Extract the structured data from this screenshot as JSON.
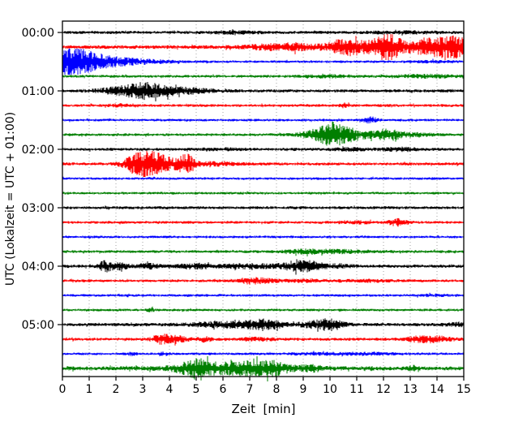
{
  "chart_data": {
    "type": "line",
    "subtype": "seismogram-dayplot",
    "title": "",
    "xlabel": "Zeit  [min]",
    "ylabel": "UTC (Lokalzeit = UTC + 01:00)",
    "xlim": [
      0,
      15
    ],
    "x_ticks": [
      0,
      1,
      2,
      3,
      4,
      5,
      6,
      7,
      8,
      9,
      10,
      11,
      12,
      13,
      14,
      15
    ],
    "x_tick_labels": [
      "0",
      "1",
      "2",
      "3",
      "4",
      "5",
      "6",
      "7",
      "8",
      "9",
      "10",
      "11",
      "12",
      "13",
      "14",
      "15"
    ],
    "y_tick_labels": [
      "00:00",
      "01:00",
      "02:00",
      "03:00",
      "04:00",
      "05:00"
    ],
    "legend": "none",
    "grid": "vertical dotted gridline at every minute",
    "minutes_per_row": 15,
    "rows_per_hour": 4,
    "colors": {
      "black": "#000000",
      "red": "#ff0000",
      "blue": "#0000ff",
      "green": "#007f00",
      "grid": "#999999",
      "axis": "#000000",
      "background": "#ffffff"
    },
    "burst_encoding": "t = center time in minutes, w = gaussian width (minutes), a = peak half-amplitude (px); base = background noise half-amplitude (px)",
    "traces": [
      {
        "time": "00:00",
        "color": "black",
        "base": 1.3,
        "bursts": [
          {
            "t": 6.4,
            "w": 0.7,
            "a": 0.8
          },
          {
            "t": 12.8,
            "w": 1.0,
            "a": 0.6
          }
        ]
      },
      {
        "time": "00:15",
        "color": "red",
        "base": 1.5,
        "bursts": [
          {
            "t": 7.5,
            "w": 0.4,
            "a": 1.2
          },
          {
            "t": 8.6,
            "w": 0.5,
            "a": 2.0
          },
          {
            "t": 10.6,
            "w": 0.45,
            "a": 5.5
          },
          {
            "t": 11.9,
            "w": 0.6,
            "a": 3.0
          },
          {
            "t": 12.2,
            "w": 0.3,
            "a": 8.5
          },
          {
            "t": 13.6,
            "w": 0.5,
            "a": 4.0
          },
          {
            "t": 14.3,
            "w": 0.4,
            "a": 5.0
          },
          {
            "t": 14.85,
            "w": 0.3,
            "a": 5.0
          },
          {
            "t": 11.5,
            "w": 3.0,
            "a": 1.2
          }
        ]
      },
      {
        "time": "00:30",
        "color": "blue",
        "base": 1.1,
        "bursts": [
          {
            "t": 0.25,
            "w": 0.35,
            "a": 9.5
          },
          {
            "t": 0.9,
            "w": 0.5,
            "a": 6.0
          },
          {
            "t": 1.8,
            "w": 0.8,
            "a": 2.5
          },
          {
            "t": 3.0,
            "w": 1.0,
            "a": 1.0
          },
          {
            "t": 13.8,
            "w": 0.6,
            "a": 0.5
          }
        ]
      },
      {
        "time": "00:45",
        "color": "green",
        "base": 1.2,
        "bursts": [
          {
            "t": 10.0,
            "w": 0.7,
            "a": 0.8
          },
          {
            "t": 13.5,
            "w": 0.8,
            "a": 1.0
          }
        ]
      },
      {
        "time": "01:00",
        "color": "black",
        "base": 1.3,
        "bursts": [
          {
            "t": 1.8,
            "w": 0.5,
            "a": 1.5
          },
          {
            "t": 2.9,
            "w": 0.55,
            "a": 4.5
          },
          {
            "t": 3.6,
            "w": 0.8,
            "a": 2.5
          },
          {
            "t": 4.8,
            "w": 0.8,
            "a": 1.2
          }
        ]
      },
      {
        "time": "01:15",
        "color": "red",
        "base": 1.2,
        "bursts": [
          {
            "t": 2.1,
            "w": 0.3,
            "a": 0.7
          },
          {
            "t": 10.55,
            "w": 0.12,
            "a": 1.6
          }
        ]
      },
      {
        "time": "01:30",
        "color": "blue",
        "base": 1.1,
        "bursts": [
          {
            "t": 11.5,
            "w": 0.18,
            "a": 2.6
          }
        ]
      },
      {
        "time": "01:45",
        "color": "green",
        "base": 1.2,
        "bursts": [
          {
            "t": 9.6,
            "w": 0.5,
            "a": 3.0
          },
          {
            "t": 10.25,
            "w": 0.5,
            "a": 6.0
          },
          {
            "t": 11.2,
            "w": 0.7,
            "a": 2.2
          },
          {
            "t": 12.2,
            "w": 0.3,
            "a": 3.2
          },
          {
            "t": 13.0,
            "w": 0.6,
            "a": 1.2
          }
        ]
      },
      {
        "time": "02:00",
        "color": "black",
        "base": 1.3,
        "bursts": [
          {
            "t": 6.1,
            "w": 0.5,
            "a": 0.7
          },
          {
            "t": 10.8,
            "w": 0.4,
            "a": 1.0
          },
          {
            "t": 12.6,
            "w": 0.5,
            "a": 1.1
          }
        ]
      },
      {
        "time": "02:15",
        "color": "red",
        "base": 1.3,
        "bursts": [
          {
            "t": 2.6,
            "w": 0.3,
            "a": 3.0
          },
          {
            "t": 3.15,
            "w": 0.4,
            "a": 10.0
          },
          {
            "t": 3.9,
            "w": 0.45,
            "a": 4.0
          },
          {
            "t": 4.65,
            "w": 0.22,
            "a": 6.5
          },
          {
            "t": 5.6,
            "w": 0.7,
            "a": 1.2
          }
        ]
      },
      {
        "time": "02:30",
        "color": "blue",
        "base": 1.1,
        "bursts": []
      },
      {
        "time": "02:45",
        "color": "green",
        "base": 1.1,
        "bursts": []
      },
      {
        "time": "03:00",
        "color": "black",
        "base": 1.3,
        "bursts": []
      },
      {
        "time": "03:15",
        "color": "red",
        "base": 1.2,
        "bursts": [
          {
            "t": 11.0,
            "w": 0.5,
            "a": 0.7
          },
          {
            "t": 12.5,
            "w": 0.22,
            "a": 2.6
          }
        ]
      },
      {
        "time": "03:30",
        "color": "blue",
        "base": 1.1,
        "bursts": []
      },
      {
        "time": "03:45",
        "color": "green",
        "base": 1.2,
        "bursts": [
          {
            "t": 9.0,
            "w": 0.5,
            "a": 1.0
          },
          {
            "t": 10.2,
            "w": 1.0,
            "a": 1.1
          }
        ]
      },
      {
        "time": "04:00",
        "color": "black",
        "base": 1.4,
        "bursts": [
          {
            "t": 1.6,
            "w": 0.18,
            "a": 3.8
          },
          {
            "t": 2.15,
            "w": 0.25,
            "a": 2.2
          },
          {
            "t": 3.2,
            "w": 0.3,
            "a": 1.6
          },
          {
            "t": 5.0,
            "w": 0.5,
            "a": 1.6
          },
          {
            "t": 7.0,
            "w": 0.7,
            "a": 1.6
          },
          {
            "t": 8.7,
            "w": 0.4,
            "a": 3.4
          },
          {
            "t": 9.35,
            "w": 0.3,
            "a": 2.6
          },
          {
            "t": 10.2,
            "w": 0.4,
            "a": 1.4
          }
        ]
      },
      {
        "time": "04:15",
        "color": "red",
        "base": 1.2,
        "bursts": [
          {
            "t": 7.2,
            "w": 0.45,
            "a": 2.4
          },
          {
            "t": 9.1,
            "w": 0.6,
            "a": 0.8
          },
          {
            "t": 11.4,
            "w": 0.7,
            "a": 0.7
          }
        ]
      },
      {
        "time": "04:30",
        "color": "blue",
        "base": 1.1,
        "bursts": [
          {
            "t": 13.9,
            "w": 0.5,
            "a": 0.5
          }
        ]
      },
      {
        "time": "04:45",
        "color": "green",
        "base": 1.1,
        "bursts": [
          {
            "t": 3.3,
            "w": 0.1,
            "a": 1.8
          }
        ]
      },
      {
        "time": "05:00",
        "color": "black",
        "base": 1.4,
        "bursts": [
          {
            "t": 5.6,
            "w": 0.7,
            "a": 1.2
          },
          {
            "t": 7.0,
            "w": 0.8,
            "a": 2.2
          },
          {
            "t": 7.6,
            "w": 0.4,
            "a": 2.4
          },
          {
            "t": 9.6,
            "w": 0.5,
            "a": 2.6
          },
          {
            "t": 10.1,
            "w": 0.3,
            "a": 2.6
          },
          {
            "t": 14.8,
            "w": 0.3,
            "a": 1.2
          }
        ]
      },
      {
        "time": "05:15",
        "color": "red",
        "base": 1.3,
        "bursts": [
          {
            "t": 3.65,
            "w": 0.22,
            "a": 3.2
          },
          {
            "t": 4.2,
            "w": 0.3,
            "a": 2.6
          },
          {
            "t": 5.3,
            "w": 0.22,
            "a": 1.6
          },
          {
            "t": 7.3,
            "w": 0.4,
            "a": 1.1
          },
          {
            "t": 13.3,
            "w": 0.35,
            "a": 1.6
          },
          {
            "t": 14.0,
            "w": 0.4,
            "a": 1.9
          }
        ]
      },
      {
        "time": "05:30",
        "color": "blue",
        "base": 1.1,
        "bursts": [
          {
            "t": 2.6,
            "w": 0.12,
            "a": 1.1
          },
          {
            "t": 3.8,
            "w": 0.12,
            "a": 1.1
          },
          {
            "t": 9.7,
            "w": 0.8,
            "a": 0.7
          },
          {
            "t": 11.6,
            "w": 0.8,
            "a": 0.7
          }
        ]
      },
      {
        "time": "05:45",
        "color": "green",
        "base": 1.7,
        "bursts": [
          {
            "t": 4.7,
            "w": 0.4,
            "a": 2.6
          },
          {
            "t": 5.15,
            "w": 0.28,
            "a": 5.0
          },
          {
            "t": 6.1,
            "w": 0.8,
            "a": 2.6
          },
          {
            "t": 6.5,
            "w": 2.2,
            "a": 1.2
          },
          {
            "t": 7.2,
            "w": 0.6,
            "a": 2.8
          },
          {
            "t": 7.9,
            "w": 0.4,
            "a": 3.2
          },
          {
            "t": 9.3,
            "w": 0.3,
            "a": 1.6
          },
          {
            "t": 13.1,
            "w": 0.12,
            "a": 1.4
          }
        ]
      }
    ]
  }
}
